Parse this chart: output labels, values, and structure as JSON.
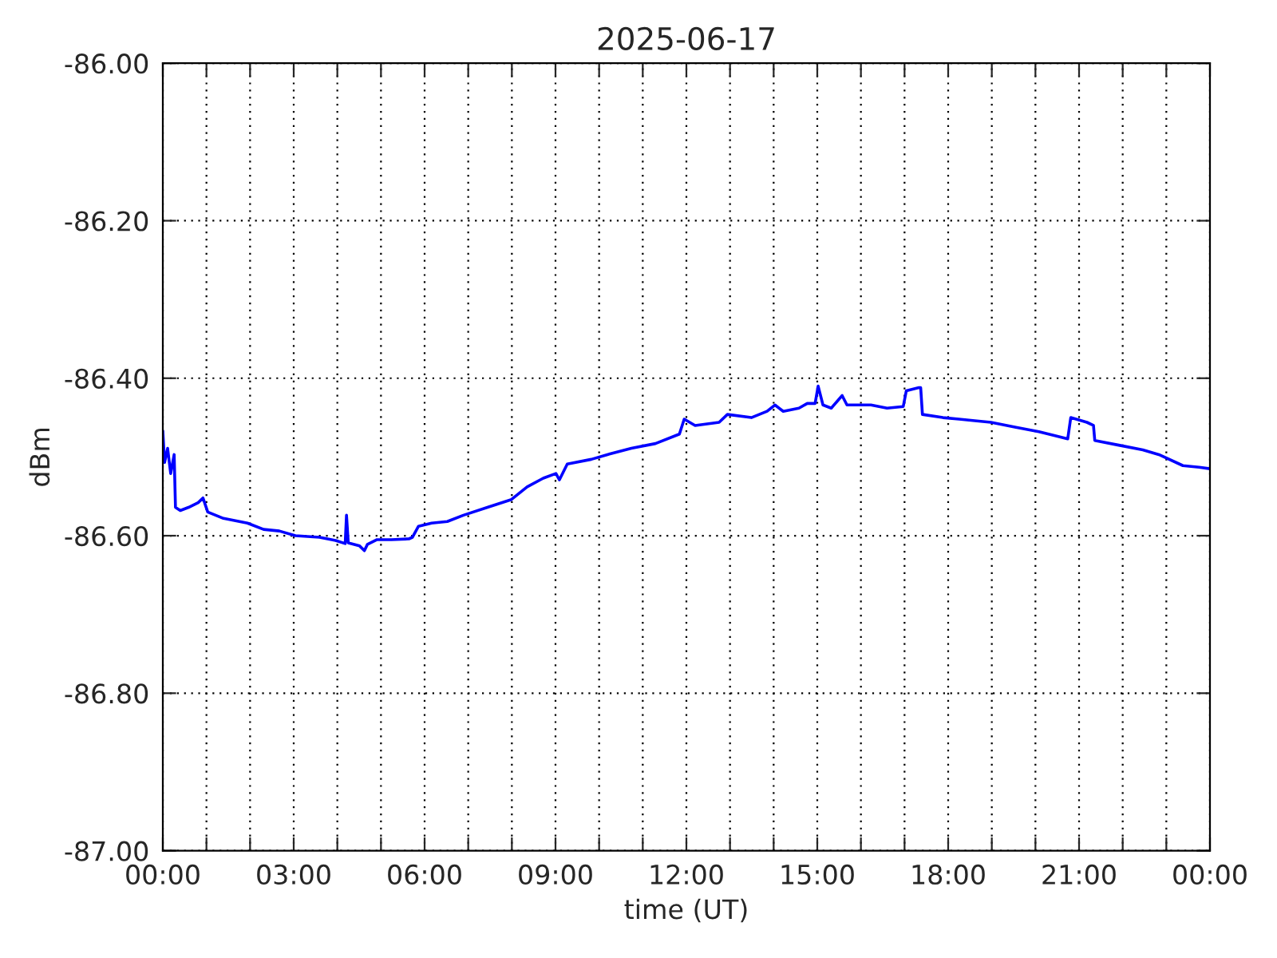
{
  "chart_data": {
    "type": "line",
    "title": "2025-06-17",
    "xlabel": "time (UT)",
    "ylabel": "dBm",
    "xlim": [
      0,
      24
    ],
    "ylim": [
      -87.0,
      -86.0
    ],
    "xticks": [
      {
        "value": 0,
        "label": "00:00"
      },
      {
        "value": 1,
        "label": null
      },
      {
        "value": 2,
        "label": null
      },
      {
        "value": 3,
        "label": "03:00"
      },
      {
        "value": 4,
        "label": null
      },
      {
        "value": 5,
        "label": null
      },
      {
        "value": 6,
        "label": "06:00"
      },
      {
        "value": 7,
        "label": null
      },
      {
        "value": 8,
        "label": null
      },
      {
        "value": 9,
        "label": "09:00"
      },
      {
        "value": 10,
        "label": null
      },
      {
        "value": 11,
        "label": null
      },
      {
        "value": 12,
        "label": "12:00"
      },
      {
        "value": 13,
        "label": null
      },
      {
        "value": 14,
        "label": null
      },
      {
        "value": 15,
        "label": "15:00"
      },
      {
        "value": 16,
        "label": null
      },
      {
        "value": 17,
        "label": null
      },
      {
        "value": 18,
        "label": "18:00"
      },
      {
        "value": 19,
        "label": null
      },
      {
        "value": 20,
        "label": null
      },
      {
        "value": 21,
        "label": "21:00"
      },
      {
        "value": 22,
        "label": null
      },
      {
        "value": 23,
        "label": null
      },
      {
        "value": 24,
        "label": "00:00"
      }
    ],
    "yticks": [
      {
        "value": -87.0,
        "label": "-87.00"
      },
      {
        "value": -86.8,
        "label": "-86.80"
      },
      {
        "value": -86.6,
        "label": "-86.60"
      },
      {
        "value": -86.4,
        "label": "-86.40"
      },
      {
        "value": -86.2,
        "label": "-86.20"
      },
      {
        "value": -86.0,
        "label": "-86.00"
      }
    ],
    "grid": true,
    "line_style": "solid",
    "marker": "none",
    "series": [
      {
        "color": "#0000ff",
        "x": [
          0.0,
          0.04,
          0.11,
          0.18,
          0.26,
          0.29,
          0.4,
          0.59,
          0.81,
          0.92,
          1.03,
          1.39,
          1.94,
          2.31,
          2.67,
          3.04,
          3.59,
          3.96,
          4.18,
          4.21,
          4.25,
          4.51,
          4.62,
          4.69,
          4.91,
          5.24,
          5.64,
          5.72,
          5.86,
          6.16,
          6.52,
          6.89,
          7.44,
          7.99,
          8.35,
          8.72,
          9.01,
          9.09,
          9.27,
          9.82,
          10.19,
          10.74,
          11.29,
          11.84,
          11.95,
          12.2,
          12.75,
          12.94,
          13.49,
          13.85,
          14.03,
          14.22,
          14.58,
          14.77,
          14.95,
          15.02,
          15.13,
          15.32,
          15.57,
          15.68,
          16.23,
          16.6,
          16.97,
          17.04,
          17.33,
          17.37,
          17.41,
          17.88,
          18.25,
          18.61,
          18.98,
          19.53,
          20.08,
          20.45,
          20.74,
          20.81,
          21.18,
          21.33,
          21.36,
          21.91,
          22.46,
          22.83,
          23.38,
          23.75,
          24.0
        ],
        "values": [
          -86.467,
          -86.507,
          -86.489,
          -86.521,
          -86.497,
          -86.564,
          -86.568,
          -86.564,
          -86.558,
          -86.552,
          -86.57,
          -86.578,
          -86.584,
          -86.592,
          -86.594,
          -86.6,
          -86.602,
          -86.606,
          -86.61,
          -86.574,
          -86.609,
          -86.613,
          -86.619,
          -86.611,
          -86.605,
          -86.605,
          -86.604,
          -86.602,
          -86.588,
          -86.584,
          -86.582,
          -86.574,
          -86.564,
          -86.554,
          -86.538,
          -86.527,
          -86.521,
          -86.529,
          -86.509,
          -86.503,
          -86.497,
          -86.489,
          -86.483,
          -86.471,
          -86.452,
          -86.46,
          -86.456,
          -86.446,
          -86.45,
          -86.442,
          -86.434,
          -86.442,
          -86.438,
          -86.432,
          -86.432,
          -86.41,
          -86.434,
          -86.438,
          -86.422,
          -86.434,
          -86.434,
          -86.438,
          -86.436,
          -86.416,
          -86.412,
          -86.412,
          -86.446,
          -86.45,
          -86.452,
          -86.454,
          -86.456,
          -86.462,
          -86.468,
          -86.473,
          -86.477,
          -86.45,
          -86.456,
          -86.46,
          -86.479,
          -86.485,
          -86.491,
          -86.497,
          -86.511,
          -86.513,
          -86.515
        ]
      }
    ]
  }
}
